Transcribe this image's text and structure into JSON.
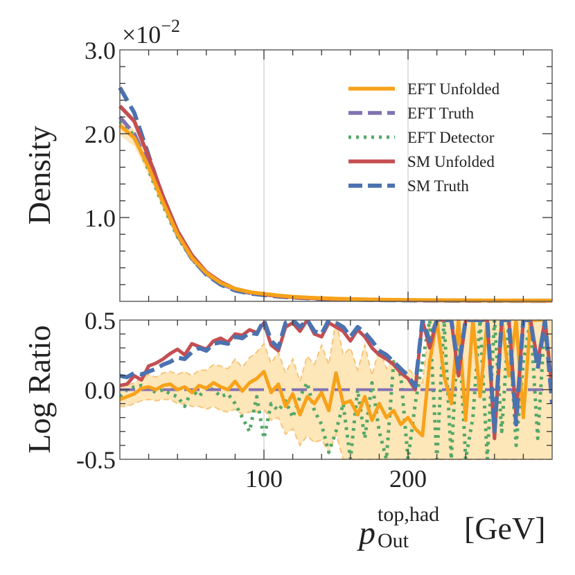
{
  "chart_data": [
    {
      "type": "line",
      "name": "density-panel",
      "ylabel": "Density",
      "offset_text": "×10",
      "offset_exponent": "−2",
      "xlim": [
        0,
        300
      ],
      "ylim": [
        0,
        3.0
      ],
      "yticks": [
        {
          "value": 1.0,
          "label": "1.0"
        },
        {
          "value": 2.0,
          "label": "2.0"
        },
        {
          "value": 3.0,
          "label": "3.0"
        }
      ],
      "xgrid": [
        100,
        200
      ],
      "legend_position": "top-right",
      "legend": [
        "EFT Unfolded",
        "EFT Truth",
        "EFT Detector",
        "SM Unfolded",
        "SM Truth"
      ],
      "x": [
        0,
        10,
        20,
        30,
        40,
        50,
        60,
        70,
        80,
        90,
        100,
        110,
        120,
        130,
        140,
        150,
        160,
        170,
        180,
        190,
        200,
        210,
        220,
        230,
        240,
        250,
        260,
        270,
        280,
        290,
        300
      ],
      "series": [
        {
          "name": "EFT Unfolded",
          "style": "solid",
          "color": "#f7a21b",
          "width": 5.5,
          "values": [
            2.1,
            1.95,
            1.6,
            1.18,
            0.8,
            0.52,
            0.34,
            0.22,
            0.15,
            0.11,
            0.09,
            0.07,
            0.055,
            0.045,
            0.038,
            0.032,
            0.028,
            0.024,
            0.021,
            0.019,
            0.017,
            0.015,
            0.014,
            0.013,
            0.012,
            0.011,
            0.01,
            0.01,
            0.009,
            0.009,
            0.009
          ],
          "band_low": [
            1.98,
            1.85,
            1.5,
            1.1,
            0.74,
            0.48,
            0.31,
            0.2,
            0.13,
            0.095,
            0.075,
            0.058,
            0.045,
            0.036,
            0.03,
            0.025,
            0.021,
            0.018,
            0.016,
            0.014,
            0.013,
            0.011,
            0.01,
            0.009,
            0.008,
            0.008,
            0.007,
            0.007,
            0.006,
            0.006,
            0.006
          ],
          "band_high": [
            2.2,
            2.05,
            1.7,
            1.28,
            0.87,
            0.57,
            0.38,
            0.25,
            0.17,
            0.125,
            0.1,
            0.08,
            0.065,
            0.054,
            0.046,
            0.039,
            0.034,
            0.03,
            0.026,
            0.023,
            0.021,
            0.019,
            0.017,
            0.016,
            0.015,
            0.014,
            0.013,
            0.012,
            0.012,
            0.011,
            0.011
          ]
        },
        {
          "name": "EFT Truth",
          "style": "dashed",
          "color": "#8172b2",
          "width": 5.5,
          "values": [
            2.2,
            2.0,
            1.62,
            1.18,
            0.79,
            0.51,
            0.33,
            0.21,
            0.14,
            0.1,
            0.08,
            0.065,
            0.052,
            0.043,
            0.036,
            0.03,
            0.026,
            0.022,
            0.02,
            0.018,
            0.016,
            0.014,
            0.013,
            0.012,
            0.011,
            0.01,
            0.01,
            0.009,
            0.009,
            0.008,
            0.008
          ]
        },
        {
          "name": "EFT Detector",
          "style": "dotted",
          "color": "#55a868",
          "width": 5,
          "values": [
            2.15,
            1.98,
            1.56,
            1.14,
            0.77,
            0.5,
            0.32,
            0.21,
            0.14,
            0.1,
            0.08,
            0.064,
            0.051,
            0.042,
            0.035,
            0.029,
            0.025,
            0.021,
            0.019,
            0.017,
            0.015,
            0.013,
            0.012,
            0.011,
            0.01,
            0.009,
            0.009,
            0.008,
            0.008,
            0.008,
            0.007
          ]
        },
        {
          "name": "SM Unfolded",
          "style": "solid",
          "color": "#c44e52",
          "width": 5.5,
          "values": [
            2.33,
            2.15,
            1.72,
            1.25,
            0.84,
            0.55,
            0.35,
            0.23,
            0.15,
            0.11,
            0.085,
            0.065,
            0.05,
            0.04,
            0.033,
            0.027,
            0.023,
            0.019,
            0.017,
            0.015,
            0.013,
            0.012,
            0.011,
            0.01,
            0.009,
            0.009,
            0.008,
            0.008,
            0.007,
            0.007,
            0.007
          ]
        },
        {
          "name": "SM Truth",
          "style": "dashed",
          "color": "#4c72b0",
          "width": 6,
          "values": [
            2.55,
            2.25,
            1.74,
            1.22,
            0.8,
            0.51,
            0.32,
            0.2,
            0.13,
            0.095,
            0.075,
            0.058,
            0.046,
            0.037,
            0.03,
            0.025,
            0.021,
            0.018,
            0.016,
            0.014,
            0.012,
            0.011,
            0.01,
            0.009,
            0.008,
            0.008,
            0.007,
            0.007,
            0.006,
            0.006,
            0.006
          ]
        }
      ]
    },
    {
      "type": "line",
      "name": "log-ratio-panel",
      "ylabel": "Log Ratio",
      "xlabel_main": "p",
      "xlabel_sup": "top,had",
      "xlabel_sub": "Out",
      "xlabel_unit": "[GeV]",
      "xlim": [
        0,
        300
      ],
      "ylim": [
        -0.5,
        0.5
      ],
      "yticks": [
        {
          "value": -0.5,
          "label": "-0.5"
        },
        {
          "value": 0.0,
          "label": "0.0"
        },
        {
          "value": 0.5,
          "label": "0.5"
        }
      ],
      "xticks": [
        {
          "value": 100,
          "label": "100"
        },
        {
          "value": 200,
          "label": "200"
        }
      ],
      "xgrid": [
        100,
        200
      ],
      "x": [
        0,
        5,
        10,
        15,
        20,
        25,
        30,
        35,
        40,
        45,
        50,
        55,
        60,
        65,
        70,
        75,
        80,
        85,
        90,
        95,
        100,
        105,
        110,
        115,
        120,
        125,
        130,
        135,
        140,
        145,
        150,
        155,
        160,
        165,
        170,
        175,
        180,
        185,
        190,
        195,
        200,
        205,
        210,
        215,
        220,
        225,
        230,
        235,
        240,
        245,
        250,
        255,
        260,
        265,
        270,
        275,
        280,
        285,
        290,
        295,
        300
      ],
      "series": [
        {
          "name": "EFT Unfolded",
          "style": "solid",
          "color": "#f7a21b",
          "width": 5,
          "values": [
            -0.07,
            -0.05,
            -0.03,
            0.01,
            0.02,
            0.0,
            0.03,
            0.04,
            0.0,
            0.02,
            -0.02,
            0.03,
            0.01,
            0.05,
            0.02,
            0.0,
            0.06,
            -0.01,
            0.05,
            0.08,
            0.13,
            -0.02,
            0.04,
            -0.12,
            -0.03,
            -0.18,
            -0.05,
            -0.1,
            -0.02,
            -0.15,
            0.12,
            -0.1,
            -0.08,
            -0.18,
            -0.05,
            -0.22,
            -0.1,
            -0.2,
            -0.15,
            -0.25,
            -0.2,
            -0.28,
            -0.33,
            0.2,
            0.5,
            0.1,
            -0.1,
            0.5,
            -0.22,
            0.5,
            -0.05,
            0.5,
            -0.35,
            0.5,
            0.1,
            0.5,
            -0.2,
            0.5,
            0.5,
            0.5,
            0.0
          ]
        },
        {
          "name": "EFT Truth",
          "style": "dashed",
          "color": "#8172b2",
          "width": 4,
          "values": [
            0,
            0,
            0,
            0,
            0,
            0,
            0,
            0,
            0,
            0,
            0,
            0,
            0,
            0,
            0,
            0,
            0,
            0,
            0,
            0,
            0,
            0,
            0,
            0,
            0,
            0,
            0,
            0,
            0,
            0,
            0,
            0,
            0,
            0,
            0,
            0,
            0,
            0,
            0,
            0,
            0,
            0,
            0,
            0,
            0,
            0,
            0,
            0,
            0,
            0,
            0,
            0,
            0,
            0,
            0,
            0,
            0,
            0,
            0,
            0,
            0
          ]
        },
        {
          "name": "EFT Detector",
          "style": "dotted",
          "color": "#55a868",
          "width": 5,
          "values": [
            -0.05,
            0.0,
            0.02,
            0.03,
            0.01,
            -0.02,
            0.0,
            -0.03,
            -0.05,
            -0.12,
            0.0,
            -0.05,
            0.02,
            0.0,
            -0.05,
            -0.03,
            -0.1,
            -0.2,
            -0.3,
            -0.05,
            -0.35,
            -0.1,
            -0.15,
            -0.08,
            -0.2,
            -0.05,
            0.05,
            -0.15,
            -0.25,
            -0.45,
            -0.3,
            -0.1,
            -0.5,
            0.0,
            -0.35,
            0.05,
            -0.3,
            -0.5,
            0.2,
            0.1,
            -0.5,
            -0.1,
            0.2,
            0.5,
            -0.5,
            0.5,
            -0.5,
            0.5,
            -0.5,
            -0.2,
            0.5,
            -0.5,
            0.5,
            -0.3,
            0.5,
            -0.4,
            0.2,
            0.5,
            -0.35,
            0.5,
            0.0
          ]
        },
        {
          "name": "SM Unfolded",
          "style": "solid",
          "color": "#c44e52",
          "width": 5,
          "values": [
            0.03,
            0.04,
            0.1,
            0.07,
            0.17,
            0.19,
            0.22,
            0.26,
            0.29,
            0.25,
            0.33,
            0.31,
            0.29,
            0.35,
            0.37,
            0.34,
            0.4,
            0.39,
            0.43,
            0.41,
            0.48,
            0.32,
            0.28,
            0.45,
            0.48,
            0.42,
            0.5,
            0.4,
            0.38,
            0.48,
            0.45,
            0.42,
            0.35,
            0.43,
            0.38,
            0.3,
            0.25,
            0.22,
            0.18,
            0.12,
            0.08,
            0.0,
            0.5,
            0.3,
            0.5,
            0.5,
            0.5,
            0.1,
            0.5,
            0.5,
            0.5,
            0.5,
            -0.35,
            0.5,
            0.5,
            -0.2,
            0.5,
            0.5,
            0.2,
            0.5,
            0.0
          ]
        },
        {
          "name": "SM Truth",
          "style": "dashed",
          "color": "#4c72b0",
          "width": 6,
          "values": [
            0.1,
            0.09,
            0.12,
            0.11,
            0.13,
            0.15,
            0.18,
            0.2,
            0.23,
            0.22,
            0.27,
            0.3,
            0.28,
            0.33,
            0.34,
            0.33,
            0.38,
            0.37,
            0.41,
            0.4,
            0.5,
            0.35,
            0.3,
            0.48,
            0.5,
            0.45,
            0.5,
            0.42,
            0.4,
            0.5,
            0.48,
            0.45,
            0.38,
            0.45,
            0.41,
            0.35,
            0.28,
            0.25,
            0.2,
            0.15,
            0.1,
            0.02,
            0.5,
            0.35,
            0.5,
            0.5,
            0.5,
            0.15,
            0.5,
            0.5,
            0.5,
            0.5,
            -0.3,
            0.5,
            0.5,
            -0.25,
            0.5,
            0.5,
            0.15,
            0.5,
            -0.1
          ]
        }
      ],
      "band": {
        "name": "EFT Unfolded uncertainty",
        "color": "#fde6b8",
        "edge_color": "#f7c47a",
        "low": [
          -0.12,
          -0.12,
          -0.1,
          -0.08,
          -0.07,
          -0.08,
          -0.07,
          -0.07,
          -0.1,
          -0.1,
          -0.12,
          -0.12,
          -0.14,
          -0.12,
          -0.15,
          -0.16,
          -0.14,
          -0.18,
          -0.16,
          -0.16,
          -0.14,
          -0.22,
          -0.2,
          -0.32,
          -0.28,
          -0.4,
          -0.33,
          -0.38,
          -0.36,
          -0.45,
          -0.32,
          -0.5,
          -0.5,
          -0.5,
          -0.5,
          -0.5,
          -0.5,
          -0.5,
          -0.5,
          -0.5,
          -0.5,
          -0.5,
          -0.5,
          -0.5,
          -0.5,
          -0.5,
          -0.5,
          -0.5,
          -0.5,
          -0.5,
          -0.5,
          -0.5,
          -0.5,
          -0.5,
          -0.5,
          -0.5,
          -0.5,
          -0.5,
          -0.5,
          -0.5,
          -0.5
        ],
        "high": [
          0.02,
          0.03,
          0.05,
          0.08,
          0.11,
          0.09,
          0.12,
          0.13,
          0.11,
          0.13,
          0.1,
          0.14,
          0.14,
          0.18,
          0.17,
          0.15,
          0.22,
          0.16,
          0.23,
          0.27,
          0.33,
          0.19,
          0.27,
          0.12,
          0.22,
          0.06,
          0.24,
          0.18,
          0.32,
          0.18,
          0.5,
          0.25,
          0.3,
          0.14,
          0.32,
          0.1,
          0.3,
          0.15,
          0.22,
          0.1,
          0.15,
          0.1,
          0.05,
          0.5,
          0.5,
          0.5,
          0.5,
          0.5,
          0.5,
          0.5,
          0.5,
          0.5,
          0.5,
          0.5,
          0.5,
          0.5,
          0.5,
          0.5,
          0.5,
          0.5,
          0.5
        ]
      }
    }
  ]
}
